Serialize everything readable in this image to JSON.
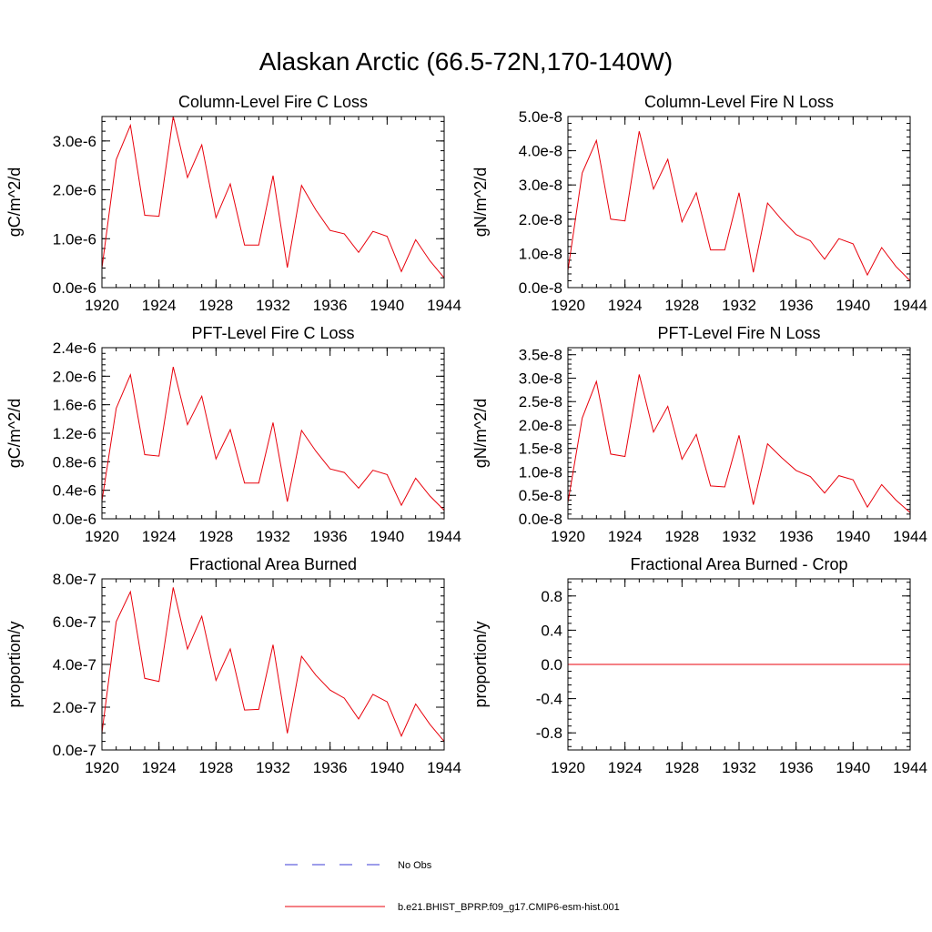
{
  "figure": {
    "title": "Alaskan Arctic (66.5-72N,170-140W)",
    "series_color": "#e8000b",
    "obs_color": "#3b3bd6"
  },
  "legend": {
    "obs_label": "No Obs",
    "model_label": "b.e21.BHIST_BPRP.f09_g17.CMIP6-esm-hist.001"
  },
  "chart_data": [
    {
      "type": "line",
      "title": "Column-Level Fire C Loss",
      "ylabel": "gC/m^2/d",
      "xlabel": "",
      "x": [
        1920,
        1921,
        1922,
        1923,
        1924,
        1925,
        1926,
        1927,
        1928,
        1929,
        1930,
        1931,
        1932,
        1933,
        1934,
        1935,
        1936,
        1937,
        1938,
        1939,
        1940,
        1941,
        1942,
        1943,
        1944
      ],
      "values": [
        4e-07,
        2.62e-06,
        3.32e-06,
        1.48e-06,
        1.46e-06,
        3.5e-06,
        2.25e-06,
        2.92e-06,
        1.43e-06,
        2.12e-06,
        8.7e-07,
        8.7e-07,
        2.29e-06,
        4.1e-07,
        2.09e-06,
        1.59e-06,
        1.17e-06,
        1.1e-06,
        7.2e-07,
        1.15e-06,
        1.05e-06,
        3.3e-07,
        9.8e-07,
        5.5e-07,
        2e-07
      ],
      "xlim": [
        1920,
        1944
      ],
      "ylim": [
        0,
        3.5e-06
      ],
      "xticks": [
        "1920",
        "1924",
        "1928",
        "1932",
        "1936",
        "1940",
        "1944"
      ],
      "xtick_values": [
        1920,
        1924,
        1928,
        1932,
        1936,
        1940,
        1944
      ],
      "yticks": [
        "0.0e-6",
        "1.0e-6",
        "2.0e-6",
        "3.0e-6"
      ],
      "ytick_values": [
        0,
        1e-06,
        2e-06,
        3e-06
      ]
    },
    {
      "type": "line",
      "title": "Column-Level Fire N Loss",
      "ylabel": "gN/m^2/d",
      "xlabel": "",
      "x": [
        1920,
        1921,
        1922,
        1923,
        1924,
        1925,
        1926,
        1927,
        1928,
        1929,
        1930,
        1931,
        1932,
        1933,
        1934,
        1935,
        1936,
        1937,
        1938,
        1939,
        1940,
        1941,
        1942,
        1943,
        1944
      ],
      "values": [
        5e-09,
        3.35e-08,
        4.3e-08,
        2e-08,
        1.95e-08,
        4.57e-08,
        2.88e-08,
        3.75e-08,
        1.92e-08,
        2.77e-08,
        1.1e-08,
        1.1e-08,
        2.77e-08,
        4.5e-09,
        2.47e-08,
        1.98e-08,
        1.55e-08,
        1.37e-08,
        8.3e-09,
        1.43e-08,
        1.28e-08,
        3.7e-09,
        1.17e-08,
        6.2e-09,
        2e-09
      ],
      "xlim": [
        1920,
        1944
      ],
      "ylim": [
        0,
        5e-08
      ],
      "xticks": [
        "1920",
        "1924",
        "1928",
        "1932",
        "1936",
        "1940",
        "1944"
      ],
      "xtick_values": [
        1920,
        1924,
        1928,
        1932,
        1936,
        1940,
        1944
      ],
      "yticks": [
        "0.0e-8",
        "1.0e-8",
        "2.0e-8",
        "3.0e-8",
        "4.0e-8",
        "5.0e-8"
      ],
      "ytick_values": [
        0,
        1e-08,
        2e-08,
        3e-08,
        4e-08,
        5e-08
      ]
    },
    {
      "type": "line",
      "title": "PFT-Level Fire C Loss",
      "ylabel": "gC/m^2/d",
      "xlabel": "",
      "x": [
        1920,
        1921,
        1922,
        1923,
        1924,
        1925,
        1926,
        1927,
        1928,
        1929,
        1930,
        1931,
        1932,
        1933,
        1934,
        1935,
        1936,
        1937,
        1938,
        1939,
        1940,
        1941,
        1942,
        1943,
        1944
      ],
      "values": [
        2.5e-07,
        1.55e-06,
        2.02e-06,
        9e-07,
        8.8e-07,
        2.13e-06,
        1.32e-06,
        1.72e-06,
        8.4e-07,
        1.25e-06,
        5e-07,
        5e-07,
        1.35e-06,
        2.4e-07,
        1.24e-06,
        9.5e-07,
        7e-07,
        6.5e-07,
        4.3e-07,
        6.8e-07,
        6.2e-07,
        1.9e-07,
        5.7e-07,
        3.2e-07,
        1.2e-07
      ],
      "xlim": [
        1920,
        1944
      ],
      "ylim": [
        0,
        2.4e-06
      ],
      "xticks": [
        "1920",
        "1924",
        "1928",
        "1932",
        "1936",
        "1940",
        "1944"
      ],
      "xtick_values": [
        1920,
        1924,
        1928,
        1932,
        1936,
        1940,
        1944
      ],
      "yticks": [
        "0.0e-6",
        "0.4e-6",
        "0.8e-6",
        "1.2e-6",
        "1.6e-6",
        "2.0e-6",
        "2.4e-6"
      ],
      "ytick_values": [
        0,
        4e-07,
        8e-07,
        1.2e-06,
        1.6e-06,
        2e-06,
        2.4e-06
      ]
    },
    {
      "type": "line",
      "title": "PFT-Level Fire N Loss",
      "ylabel": "gN/m^2/d",
      "xlabel": "",
      "x": [
        1920,
        1921,
        1922,
        1923,
        1924,
        1925,
        1926,
        1927,
        1928,
        1929,
        1930,
        1931,
        1932,
        1933,
        1934,
        1935,
        1936,
        1937,
        1938,
        1939,
        1940,
        1941,
        1942,
        1943,
        1944
      ],
      "values": [
        3.5e-09,
        2.15e-08,
        2.93e-08,
        1.38e-08,
        1.33e-08,
        3.08e-08,
        1.85e-08,
        2.4e-08,
        1.27e-08,
        1.8e-08,
        7e-09,
        6.8e-09,
        1.78e-08,
        3e-09,
        1.6e-08,
        1.3e-08,
        1.03e-08,
        9e-09,
        5.5e-09,
        9.2e-09,
        8.3e-09,
        2.5e-09,
        7.3e-09,
        4e-09,
        1.3e-09
      ],
      "xlim": [
        1920,
        1944
      ],
      "ylim": [
        0,
        3.65e-08
      ],
      "xticks": [
        "1920",
        "1924",
        "1928",
        "1932",
        "1936",
        "1940",
        "1944"
      ],
      "xtick_values": [
        1920,
        1924,
        1928,
        1932,
        1936,
        1940,
        1944
      ],
      "yticks": [
        "0.0e-8",
        "0.5e-8",
        "1.0e-8",
        "1.5e-8",
        "2.0e-8",
        "2.5e-8",
        "3.0e-8",
        "3.5e-8"
      ],
      "ytick_values": [
        0,
        5e-09,
        1e-08,
        1.5e-08,
        2e-08,
        2.5e-08,
        3e-08,
        3.5e-08
      ]
    },
    {
      "type": "line",
      "title": "Fractional Area Burned",
      "ylabel": "proportion/y",
      "xlabel": "",
      "x": [
        1920,
        1921,
        1922,
        1923,
        1924,
        1925,
        1926,
        1927,
        1928,
        1929,
        1930,
        1931,
        1932,
        1933,
        1934,
        1935,
        1936,
        1937,
        1938,
        1939,
        1940,
        1941,
        1942,
        1943,
        1944
      ],
      "values": [
        8e-08,
        6e-07,
        7.4e-07,
        3.35e-07,
        3.2e-07,
        7.6e-07,
        4.72e-07,
        6.25e-07,
        3.25e-07,
        4.72e-07,
        1.87e-07,
        1.9e-07,
        4.92e-07,
        7.8e-08,
        4.38e-07,
        3.5e-07,
        2.8e-07,
        2.42e-07,
        1.45e-07,
        2.6e-07,
        2.25e-07,
        6.5e-08,
        2.15e-07,
        1.2e-07,
        4e-08
      ],
      "xlim": [
        1920,
        1944
      ],
      "ylim": [
        0,
        8e-07
      ],
      "xticks": [
        "1920",
        "1924",
        "1928",
        "1932",
        "1936",
        "1940",
        "1944"
      ],
      "xtick_values": [
        1920,
        1924,
        1928,
        1932,
        1936,
        1940,
        1944
      ],
      "yticks": [
        "0.0e-7",
        "2.0e-7",
        "4.0e-7",
        "6.0e-7",
        "8.0e-7"
      ],
      "ytick_values": [
        0,
        2e-07,
        4e-07,
        6e-07,
        8e-07
      ]
    },
    {
      "type": "line",
      "title": "Fractional Area Burned - Crop",
      "ylabel": "proportion/y",
      "xlabel": "",
      "x": [
        1920,
        1921,
        1922,
        1923,
        1924,
        1925,
        1926,
        1927,
        1928,
        1929,
        1930,
        1931,
        1932,
        1933,
        1934,
        1935,
        1936,
        1937,
        1938,
        1939,
        1940,
        1941,
        1942,
        1943,
        1944
      ],
      "values": [
        0,
        0,
        0,
        0,
        0,
        0,
        0,
        0,
        0,
        0,
        0,
        0,
        0,
        0,
        0,
        0,
        0,
        0,
        0,
        0,
        0,
        0,
        0,
        0,
        0
      ],
      "xlim": [
        1920,
        1944
      ],
      "ylim": [
        -1,
        1
      ],
      "xticks": [
        "1920",
        "1924",
        "1928",
        "1932",
        "1936",
        "1940",
        "1944"
      ],
      "xtick_values": [
        1920,
        1924,
        1928,
        1932,
        1936,
        1940,
        1944
      ],
      "yticks": [
        "-0.8",
        "-0.4",
        "0.0",
        "0.4",
        "0.8"
      ],
      "ytick_values": [
        -0.8,
        -0.4,
        0,
        0.4,
        0.8
      ]
    }
  ]
}
